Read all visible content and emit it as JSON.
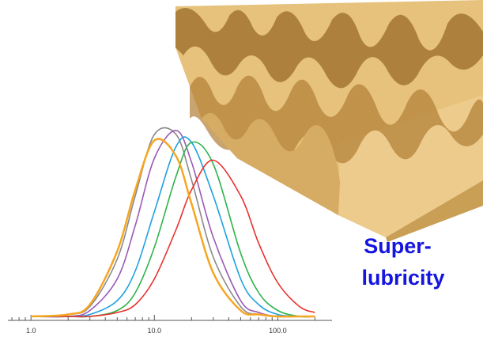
{
  "chart_data": {
    "type": "line",
    "x": [
      1,
      2,
      3,
      5,
      7,
      10,
      15,
      20,
      30,
      50,
      70,
      100,
      150,
      200
    ],
    "series": [
      {
        "color": "#8a8a8a",
        "values": [
          0,
          0.01,
          0.05,
          0.29,
          0.61,
          0.92,
          0.92,
          0.69,
          0.3,
          0.05,
          0.01,
          0,
          0,
          0
        ]
      },
      {
        "color": "#9b59b6",
        "values": [
          0,
          0,
          0.03,
          0.19,
          0.46,
          0.8,
          0.94,
          0.78,
          0.4,
          0.08,
          0.02,
          0,
          0,
          0
        ]
      },
      {
        "color": "#1ea0e0",
        "values": [
          0,
          0,
          0.01,
          0.08,
          0.23,
          0.53,
          0.86,
          0.88,
          0.61,
          0.19,
          0.06,
          0.01,
          0,
          0
        ]
      },
      {
        "color": "#2db34a",
        "values": [
          0,
          0,
          0,
          0.03,
          0.12,
          0.35,
          0.71,
          0.88,
          0.77,
          0.32,
          0.12,
          0.03,
          0,
          0
        ]
      },
      {
        "color": "#e8302c",
        "values": [
          0,
          0,
          0,
          0.02,
          0.06,
          0.19,
          0.44,
          0.64,
          0.79,
          0.61,
          0.37,
          0.17,
          0.05,
          0.02
        ]
      },
      {
        "color": "#f5a623",
        "values": [
          0,
          0.01,
          0.06,
          0.33,
          0.64,
          0.89,
          0.81,
          0.57,
          0.22,
          0.03,
          0.01,
          0,
          0,
          0
        ]
      }
    ],
    "xscale": "log",
    "xlim": [
      0.65,
      275
    ],
    "ylim": [
      0,
      1
    ],
    "xticks": [
      {
        "value": 1,
        "label": "1.0"
      },
      {
        "value": 10,
        "label": "10.0"
      },
      {
        "value": 100,
        "label": "100.0"
      }
    ],
    "minor_xticks": [
      0.7,
      0.8,
      0.9,
      2,
      3,
      4,
      5,
      6,
      7,
      8,
      9,
      20,
      30,
      40,
      50,
      60,
      70,
      80,
      90,
      200
    ],
    "annotations": [
      "Super-",
      "lubricity"
    ]
  }
}
